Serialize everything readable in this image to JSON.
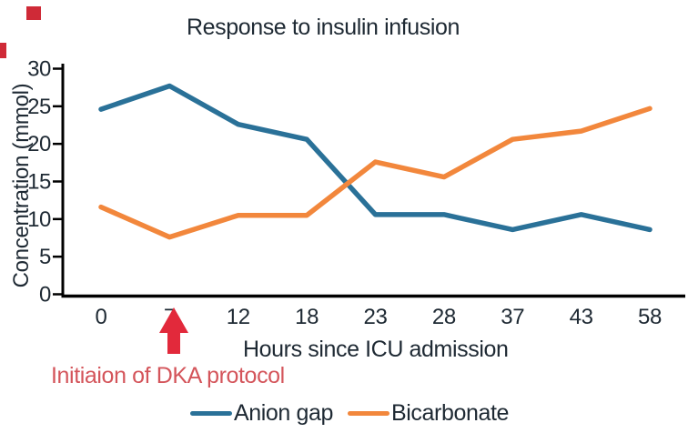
{
  "decorations": {
    "corner_square_color": "#cf2a37",
    "edge_bar_color": "#cf2a37"
  },
  "chart_data": {
    "type": "line",
    "title": "Response to insulin infusion",
    "xlabel": "Hours since ICU admission",
    "ylabel": "Concentration (mmol)",
    "categories": [
      "0",
      "7",
      "12",
      "18",
      "23",
      "28",
      "37",
      "43",
      "58"
    ],
    "yticks": [
      "0",
      "5",
      "10",
      "15",
      "20",
      "25",
      "30"
    ],
    "ylim": [
      0,
      30
    ],
    "grid": false,
    "legend_position": "bottom",
    "axis_color": "#000000",
    "tick_label_color": "#1e2933",
    "series": [
      {
        "name": "Anion gap",
        "color": "#2a7198",
        "values": [
          24.6,
          27.7,
          22.6,
          20.6,
          10.6,
          10.6,
          8.6,
          10.6,
          8.6
        ]
      },
      {
        "name": "Bicarbonate",
        "color": "#f2873c",
        "values": [
          11.6,
          7.6,
          10.5,
          10.5,
          17.6,
          15.6,
          20.6,
          21.7,
          24.7
        ]
      }
    ],
    "annotation": {
      "text": "Initiaion of DKA protocol",
      "color": "#d4555b",
      "arrow_color": "#e2293b",
      "points_at_category": "7"
    }
  }
}
